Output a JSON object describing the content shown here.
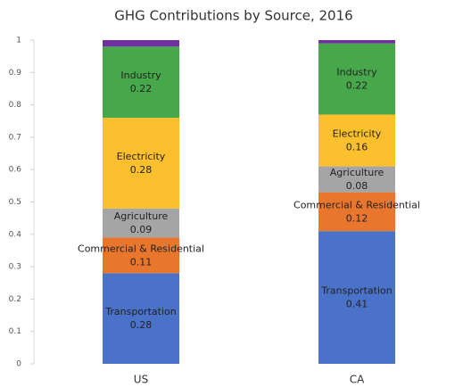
{
  "chart_data": {
    "type": "stacked_bar",
    "title": "GHG Contributions by Source, 2016",
    "categories": [
      "US",
      "CA"
    ],
    "series": [
      {
        "name": "Transportation",
        "color": "#4a72c9",
        "values": [
          0.28,
          0.41
        ]
      },
      {
        "name": "Commercial & Residential",
        "color": "#e8762d",
        "values": [
          0.11,
          0.12
        ]
      },
      {
        "name": "Agriculture",
        "color": "#a5a5a5",
        "values": [
          0.09,
          0.08
        ]
      },
      {
        "name": "Electricity",
        "color": "#fcc02e",
        "values": [
          0.28,
          0.16
        ]
      },
      {
        "name": "Industry",
        "color": "#47a84b",
        "values": [
          0.22,
          0.22
        ]
      },
      {
        "color": "#7030a0",
        "values": [
          0.02,
          0.01
        ]
      }
    ],
    "ylim": [
      0,
      1
    ],
    "yticks": [
      0,
      0.1,
      0.2,
      0.3,
      0.4,
      0.5,
      0.6,
      0.7,
      0.8,
      0.9,
      1
    ],
    "grid": false
  }
}
